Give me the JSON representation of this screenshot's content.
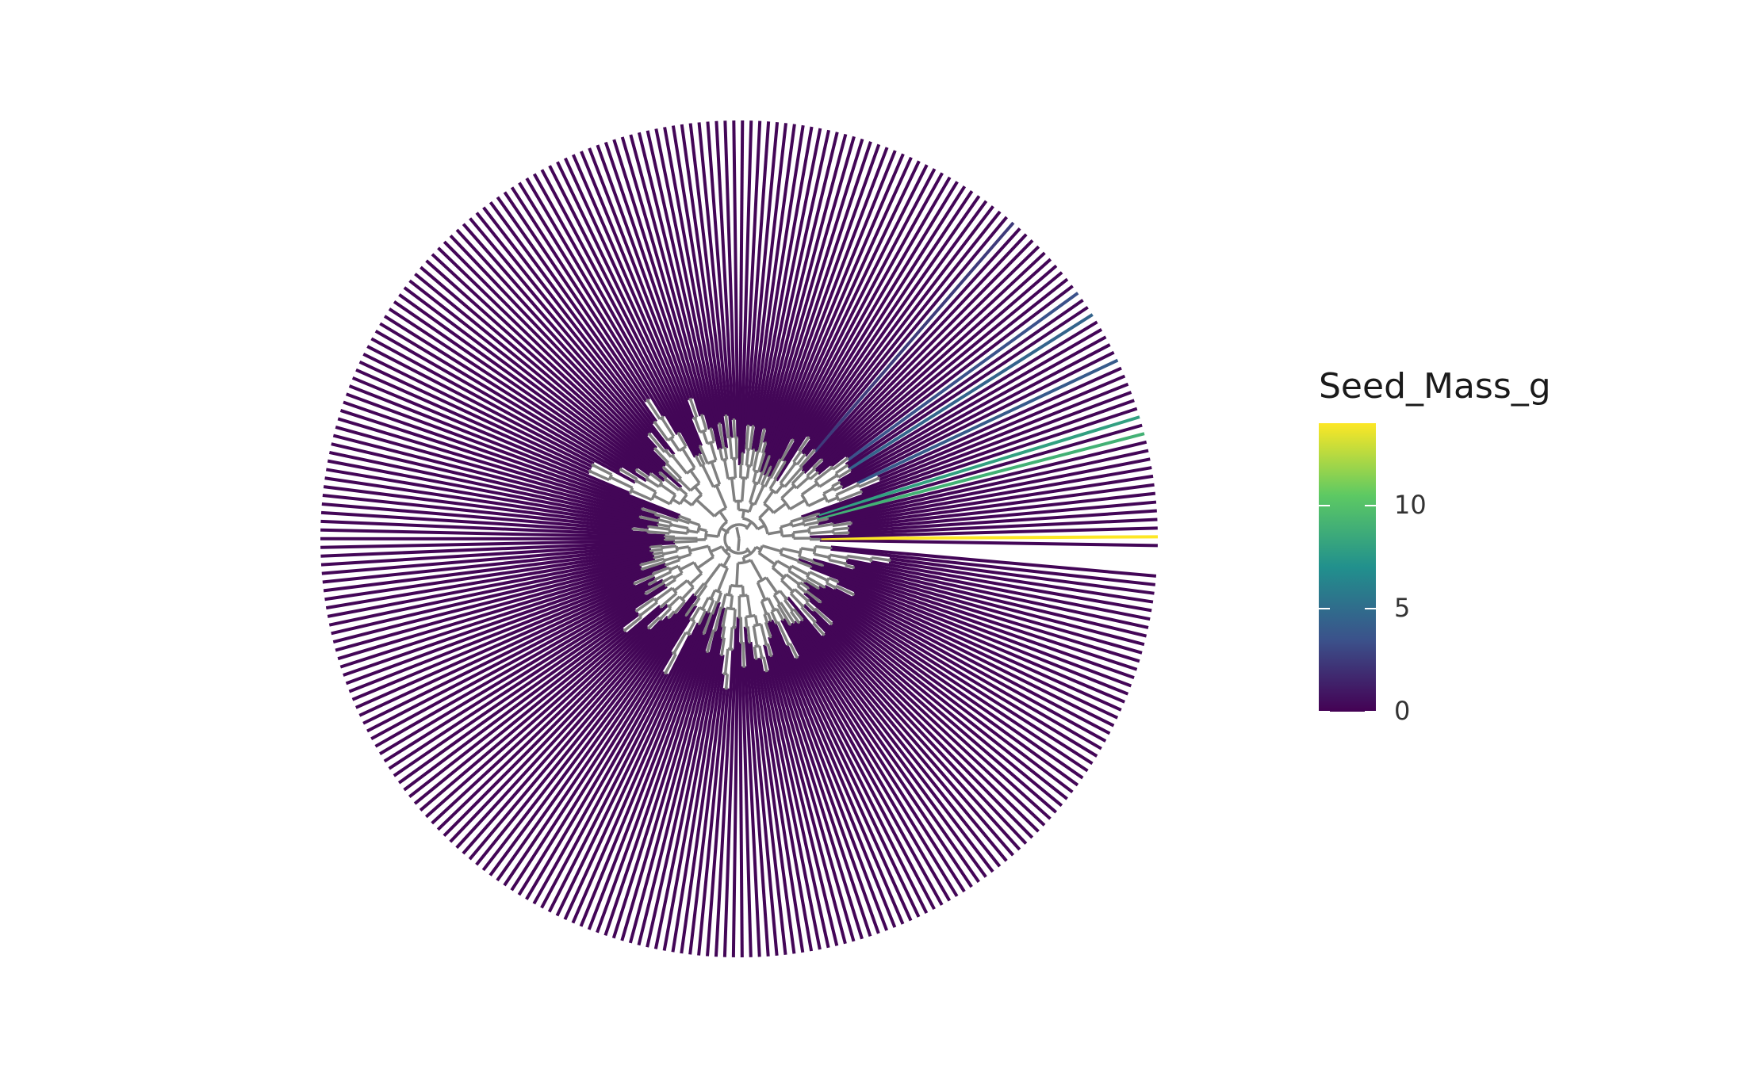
{
  "figure": {
    "kind": "circular phylogenetic tree",
    "branch_color": "#808080",
    "tip_color_scale": "viridis"
  },
  "legend": {
    "title": "Seed_Mass_g",
    "position": "right",
    "colors": [
      "#440154",
      "#3b528b",
      "#21908d",
      "#5dc963",
      "#fde725"
    ],
    "range": [
      0,
      14
    ],
    "ticks": [
      {
        "value": 0,
        "label": "0"
      },
      {
        "value": 5,
        "label": "5"
      },
      {
        "value": 10,
        "label": "10"
      }
    ]
  },
  "tips": {
    "count": 300,
    "dominant_value": 0.2,
    "highlights": [
      {
        "angle_deg": 0.4,
        "value": 14
      },
      {
        "angle_deg": 14.5,
        "value": 9
      },
      {
        "angle_deg": 17.0,
        "value": 8
      },
      {
        "angle_deg": 25.5,
        "value": 4
      },
      {
        "angle_deg": 32.5,
        "value": 4.5
      },
      {
        "angle_deg": 36.0,
        "value": 3.5
      },
      {
        "angle_deg": 49.5,
        "value": 2.5
      },
      {
        "angle_deg": -8.5,
        "value": 3.5
      },
      {
        "angle_deg": -16.5,
        "value": 2.5
      }
    ]
  }
}
